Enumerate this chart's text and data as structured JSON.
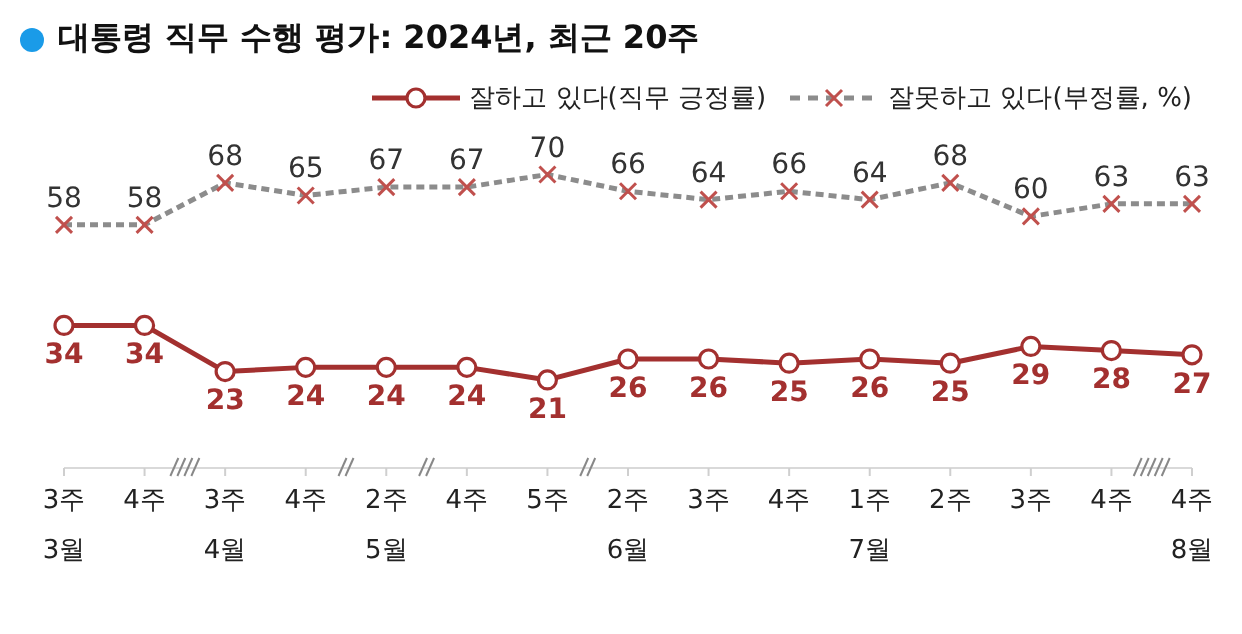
{
  "chart_data": {
    "type": "line",
    "title": "대통령 직무 수행 평가: 2024년, 최근 20주",
    "categories": [
      "3주\n3월",
      "4주",
      "3주\n4월",
      "4주",
      "2주\n5월",
      "4주",
      "5주",
      "2주\n6월",
      "3주",
      "4주",
      "1주\n7월",
      "2주",
      "3주",
      "4주",
      "4주\n8월"
    ],
    "series": [
      {
        "name": "잘하고 있다(직무 긍정률)",
        "color": "#a3302f",
        "marker": "circle",
        "line_style": "solid",
        "values": [
          34,
          34,
          23,
          24,
          24,
          24,
          21,
          26,
          26,
          25,
          26,
          25,
          29,
          28,
          27
        ]
      },
      {
        "name": "잘못하고 있다(부정률, %)",
        "color": "#8c8c8c",
        "marker": "cross",
        "line_style": "dashed",
        "values": [
          58,
          58,
          68,
          65,
          67,
          67,
          70,
          66,
          64,
          66,
          64,
          68,
          60,
          63,
          63
        ]
      }
    ],
    "data_labels": true,
    "legend": "top right",
    "grid": false,
    "tick_labels": "x"
  }
}
